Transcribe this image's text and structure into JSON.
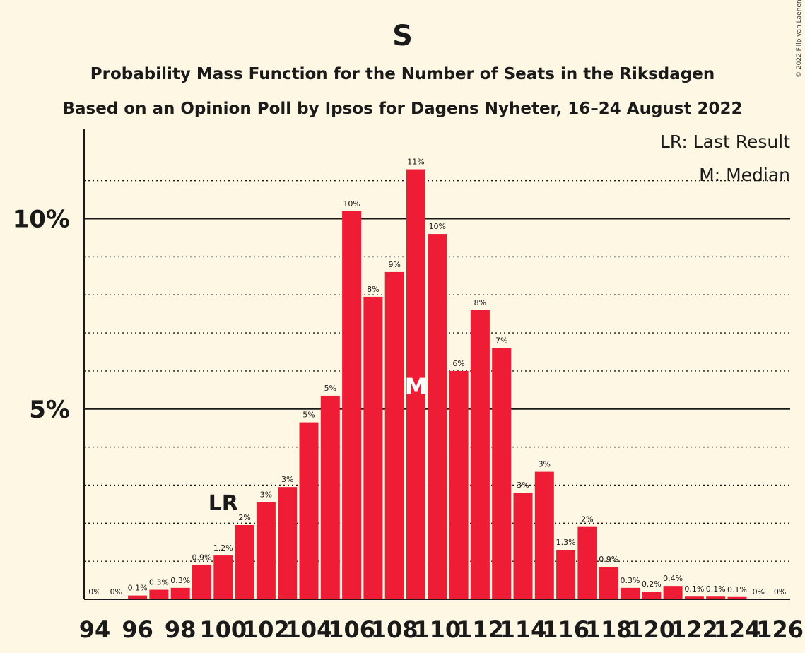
{
  "chart_data": {
    "type": "bar",
    "title": "S",
    "subtitle_lines": [
      "Probability Mass Function for the Number of Seats in the Riksdagen",
      "Based on an Opinion Poll by Ipsos for Dagens Nyheter, 16–24 August 2022"
    ],
    "copyright": "© 2022 Filip van Laenen",
    "legend": [
      "LR: Last Result",
      "M: Median"
    ],
    "legend_position": "top-right",
    "bar_color": "#ee1c35",
    "background_color": "#fdf7e3",
    "x": [
      94,
      95,
      96,
      97,
      98,
      99,
      100,
      101,
      102,
      103,
      104,
      105,
      106,
      107,
      108,
      109,
      110,
      111,
      112,
      113,
      114,
      115,
      116,
      117,
      118,
      119,
      120,
      121,
      122,
      123,
      124,
      125,
      126
    ],
    "values": [
      0,
      0,
      0.1,
      0.25,
      0.3,
      0.9,
      1.15,
      1.95,
      2.55,
      2.95,
      4.65,
      5.35,
      10.2,
      7.95,
      8.6,
      11.3,
      9.6,
      6.0,
      7.6,
      6.6,
      2.8,
      3.35,
      1.3,
      1.9,
      0.85,
      0.3,
      0.2,
      0.35,
      0.07,
      0.07,
      0.06,
      0,
      0
    ],
    "data_labels": [
      "0%",
      "0%",
      "0.1%",
      "0.3%",
      "0.3%",
      "0.9%",
      "1.2%",
      "2%",
      "3%",
      "3%",
      "5%",
      "5%",
      "10%",
      "8%",
      "9%",
      "11%",
      "10%",
      "6%",
      "8%",
      "7%",
      "3%",
      "3%",
      "1.3%",
      "2%",
      "0.9%",
      "0.3%",
      "0.2%",
      "0.4%",
      "0.1%",
      "0.1%",
      "0.1%",
      "0%",
      "0%"
    ],
    "x_tick_labels": [
      "94",
      "96",
      "98",
      "100",
      "102",
      "104",
      "106",
      "108",
      "110",
      "112",
      "114",
      "116",
      "118",
      "120",
      "122",
      "124",
      "126"
    ],
    "y_tick_labels": [
      "5%",
      "10%"
    ],
    "ylim": [
      0,
      12.35
    ],
    "last_result_seat": 100,
    "last_result_marker": "LR",
    "median_seat": 109,
    "median_marker": "M",
    "grid": "dotted every 1%, solid at 5% and 10%"
  }
}
